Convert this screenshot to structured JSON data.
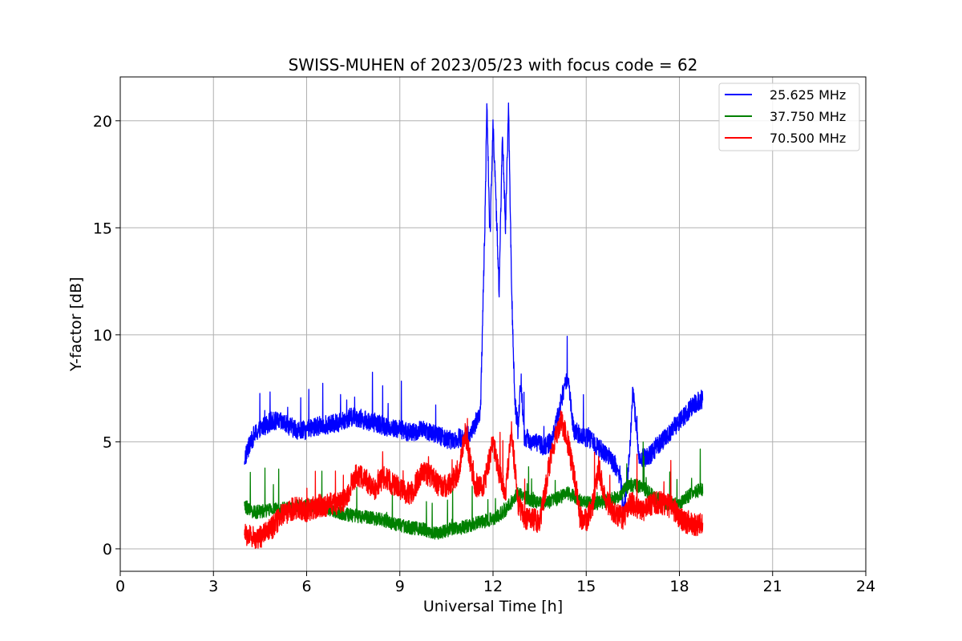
{
  "chart_data": {
    "type": "line",
    "title": "SWISS-MUHEN of 2023/05/23 with focus code = 62",
    "xlabel": "Universal Time [h]",
    "ylabel": "Y-factor [dB]",
    "xlim": [
      0,
      24
    ],
    "ylim": [
      -1.05,
      22.05
    ],
    "xticks": [
      0,
      3,
      6,
      9,
      12,
      15,
      18,
      21,
      24
    ],
    "yticks": [
      0,
      5,
      10,
      15,
      20
    ],
    "grid": true,
    "legend_position": "top-right",
    "x_range_observed": [
      4.0,
      18.75
    ],
    "series": [
      {
        "name": "25.625 MHz",
        "color": "#0000ff",
        "x": [
          4.0,
          4.1,
          4.3,
          4.6,
          4.9,
          5.2,
          5.5,
          5.8,
          6.1,
          6.5,
          6.8,
          7.2,
          7.5,
          7.9,
          8.2,
          8.6,
          9.0,
          9.4,
          9.8,
          10.2,
          10.6,
          11.0,
          11.3,
          11.6,
          11.75,
          11.8,
          11.9,
          12.0,
          12.1,
          12.2,
          12.3,
          12.4,
          12.5,
          12.6,
          12.7,
          12.8,
          12.9,
          13.0,
          13.3,
          13.6,
          13.9,
          14.2,
          14.4,
          14.6,
          14.9,
          15.2,
          15.5,
          15.8,
          16.1,
          16.2,
          16.4,
          16.5,
          16.7,
          17.0,
          17.3,
          17.6,
          17.9,
          18.2,
          18.5,
          18.75
        ],
        "y": [
          4.2,
          4.6,
          5.3,
          5.7,
          6.0,
          5.9,
          5.7,
          5.5,
          5.6,
          5.8,
          5.8,
          6.0,
          6.2,
          6.0,
          5.9,
          5.7,
          5.6,
          5.4,
          5.6,
          5.3,
          5.1,
          5.2,
          5.4,
          6.5,
          16.0,
          20.8,
          14.5,
          20.0,
          16.0,
          12.0,
          19.5,
          15.0,
          20.6,
          12.0,
          7.0,
          5.5,
          8.0,
          5.2,
          5.0,
          4.8,
          5.0,
          7.0,
          8.0,
          5.5,
          5.3,
          5.0,
          4.6,
          4.2,
          3.4,
          1.5,
          4.5,
          7.5,
          4.2,
          4.3,
          4.8,
          5.3,
          5.8,
          6.3,
          6.8,
          7.0
        ]
      },
      {
        "name": "37.750 MHz",
        "color": "#008000",
        "x": [
          4.0,
          4.3,
          4.8,
          5.3,
          5.8,
          6.3,
          6.8,
          7.3,
          7.8,
          8.3,
          8.8,
          9.3,
          9.8,
          10.2,
          10.6,
          11.0,
          11.5,
          12.0,
          12.4,
          12.8,
          13.2,
          13.6,
          14.0,
          14.4,
          14.8,
          15.2,
          15.6,
          16.0,
          16.4,
          16.8,
          17.2,
          17.6,
          18.0,
          18.4,
          18.75
        ],
        "y": [
          2.0,
          1.7,
          1.8,
          1.9,
          2.0,
          2.0,
          1.8,
          1.6,
          1.5,
          1.4,
          1.2,
          1.0,
          0.9,
          0.7,
          0.9,
          1.0,
          1.2,
          1.4,
          1.8,
          2.6,
          2.3,
          2.1,
          2.3,
          2.6,
          2.3,
          2.1,
          2.2,
          2.4,
          3.0,
          2.9,
          2.4,
          2.1,
          2.1,
          2.6,
          2.8
        ]
      },
      {
        "name": "70.500 MHz",
        "color": "#ff0000",
        "x": [
          4.0,
          4.3,
          4.6,
          4.9,
          5.2,
          5.6,
          6.0,
          6.4,
          6.8,
          7.2,
          7.6,
          7.9,
          8.2,
          8.5,
          8.8,
          9.1,
          9.4,
          9.7,
          10.0,
          10.3,
          10.6,
          10.9,
          11.1,
          11.4,
          11.7,
          12.0,
          12.2,
          12.4,
          12.6,
          12.8,
          13.0,
          13.2,
          13.5,
          13.8,
          14.0,
          14.2,
          14.4,
          14.6,
          14.8,
          15.0,
          15.2,
          15.4,
          15.6,
          15.8,
          16.0,
          16.2,
          16.4,
          16.6,
          16.9,
          17.2,
          17.5,
          17.8,
          18.1,
          18.4,
          18.75
        ],
        "y": [
          0.7,
          0.5,
          0.6,
          1.0,
          1.6,
          1.9,
          1.8,
          2.0,
          2.1,
          2.2,
          3.5,
          3.2,
          2.8,
          3.4,
          3.0,
          2.7,
          2.6,
          3.6,
          3.4,
          2.9,
          3.0,
          3.6,
          5.5,
          3.0,
          2.9,
          5.0,
          3.5,
          2.6,
          5.5,
          2.2,
          1.4,
          1.5,
          1.2,
          3.8,
          5.2,
          6.0,
          5.0,
          3.5,
          1.5,
          1.3,
          2.0,
          3.8,
          2.5,
          1.8,
          1.6,
          1.4,
          2.2,
          2.0,
          1.8,
          2.2,
          2.1,
          1.9,
          1.3,
          1.2,
          1.1
        ]
      }
    ]
  }
}
